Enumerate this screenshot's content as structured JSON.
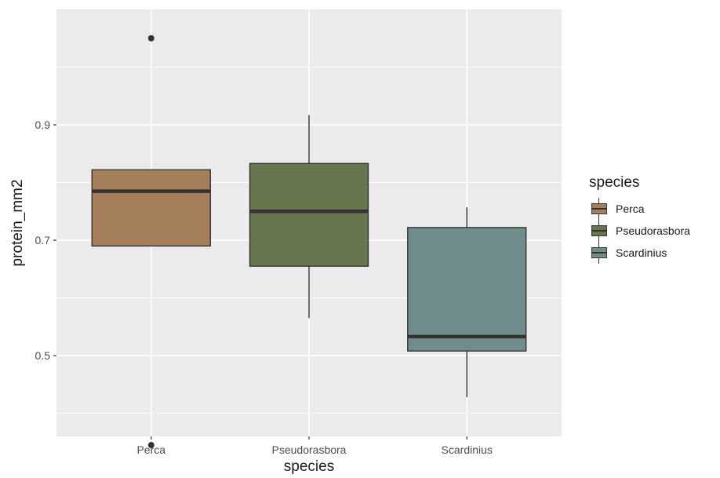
{
  "chart_data": {
    "type": "boxplot",
    "xlabel": "species",
    "ylabel": "protein_mm2",
    "categories": [
      "Perca",
      "Pseudorasbora",
      "Scardinius"
    ],
    "ylim": [
      0.36,
      1.1
    ],
    "yticks": [
      0.5,
      0.7,
      0.9
    ],
    "ytick_labels": [
      "0.5",
      "0.7",
      "0.9"
    ],
    "grid": true,
    "legend": {
      "title": "species",
      "position": "right"
    },
    "series": [
      {
        "name": "Perca",
        "color": "#a57f59",
        "min": 0.69,
        "q1": 0.69,
        "median": 0.785,
        "q3": 0.822,
        "max": 0.822,
        "outliers": [
          1.05,
          0.345
        ]
      },
      {
        "name": "Pseudorasbora",
        "color": "#68764f",
        "min": 0.565,
        "q1": 0.655,
        "median": 0.75,
        "q3": 0.833,
        "max": 0.917,
        "outliers": []
      },
      {
        "name": "Scardinius",
        "color": "#708c8b",
        "min": 0.428,
        "q1": 0.508,
        "median": 0.533,
        "q3": 0.722,
        "max": 0.757,
        "outliers": []
      }
    ]
  }
}
